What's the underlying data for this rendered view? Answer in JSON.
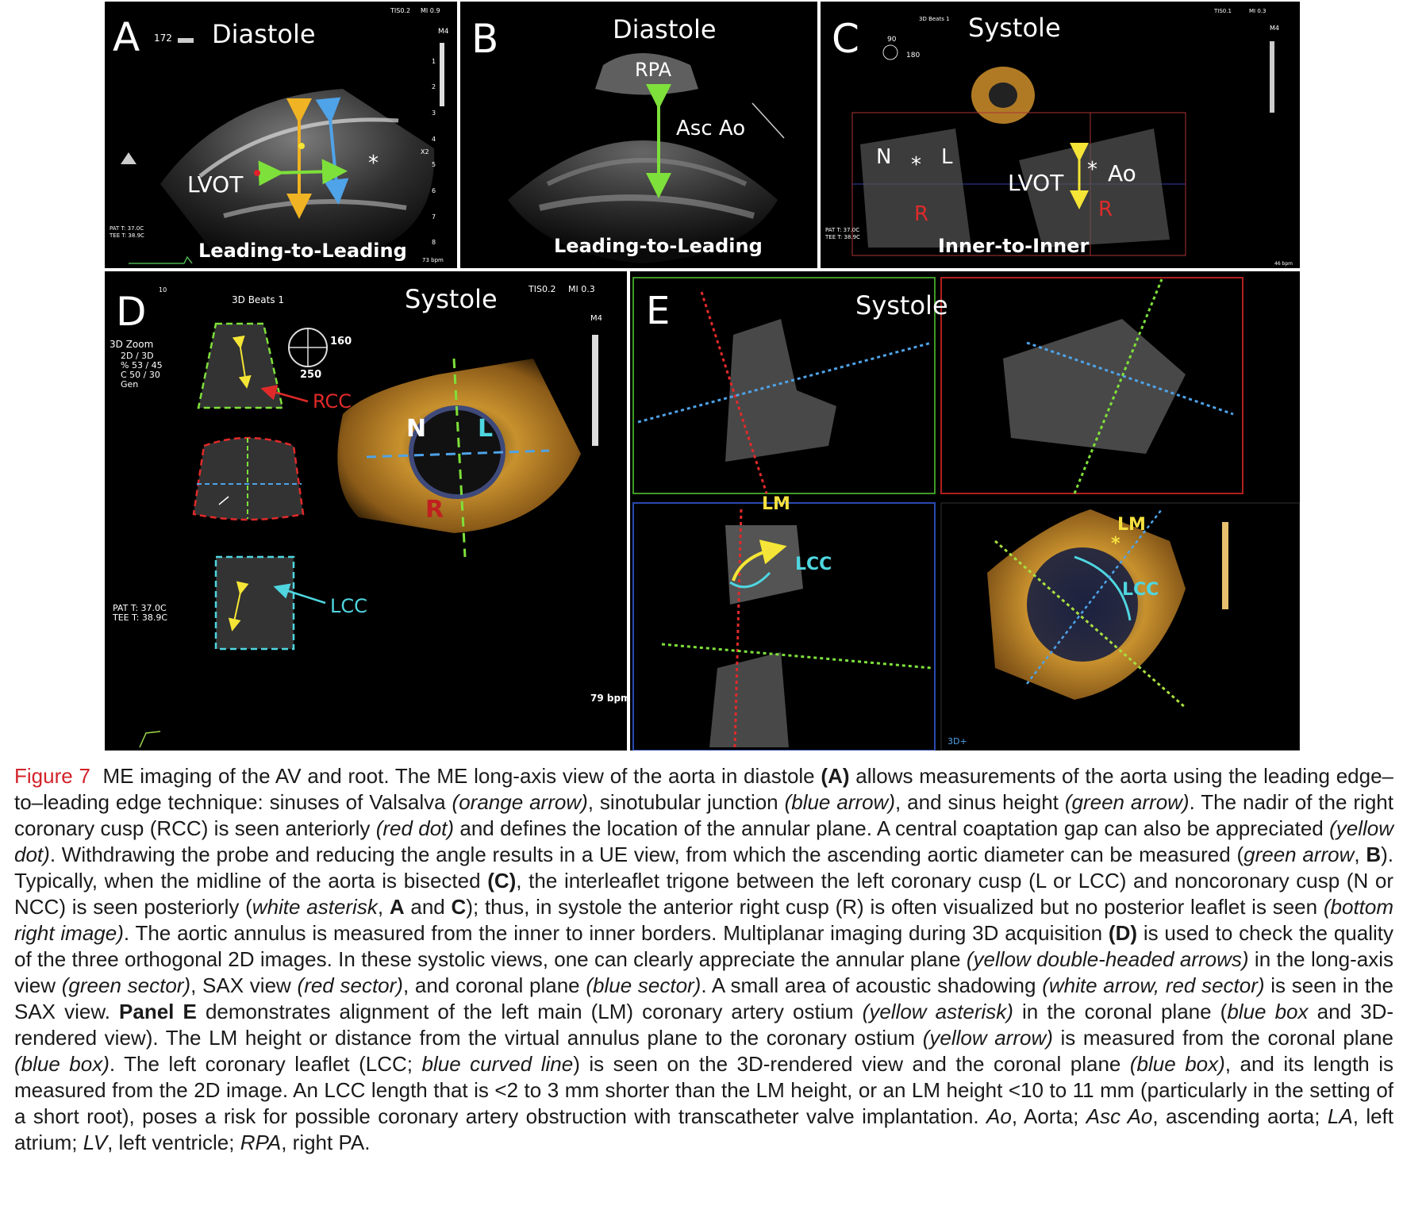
{
  "panels": {
    "A": {
      "letter": "A",
      "phase": "Diastole",
      "technique": "Leading-to-Leading",
      "tis": "TIS0.2",
      "mi": "MI 0.9",
      "m": "M4",
      "angle": "172",
      "lvot": "LVOT",
      "asterisk": "*",
      "bpm": "73 bpm",
      "x2": "X2",
      "pat": "PAT T: 37.0C",
      "tee": "TEE T: 38.9C",
      "scale_ticks": [
        "1",
        "2",
        "3",
        "4",
        "5",
        "6",
        "7",
        "8"
      ]
    },
    "B": {
      "letter": "B",
      "phase": "Diastole",
      "technique": "Leading-to-Leading",
      "rpa": "RPA",
      "asc_ao": "Asc Ao"
    },
    "C": {
      "letter": "C",
      "phase": "Systole",
      "technique": "Inner-to-Inner",
      "beats": "3D Beats 1",
      "tis": "TIS0.1",
      "mi": "MI 0.3",
      "m": "M4",
      "angle_top": "90",
      "angle_side": "180",
      "n": "N",
      "l": "L",
      "r": "R",
      "lvot": "LVOT",
      "ao": "Ao",
      "asterisk": "*",
      "bpm": "46 bpm",
      "pat": "PAT T: 37.0C",
      "tee": "TEE T: 38.9C"
    },
    "D": {
      "letter": "D",
      "phase": "Systole",
      "beats": "3D Beats 1",
      "tis": "TIS0.2",
      "mi": "MI 0.3",
      "m": "M4",
      "num10": "10",
      "angle1": "160",
      "angle2": "250",
      "zoom": "3D Zoom",
      "zoom_l1": "2D / 3D",
      "zoom_l2": "% 53 / 45",
      "zoom_l3": "C 50 / 30",
      "zoom_l4": "Gen",
      "rcc": "RCC",
      "lcc": "LCC",
      "n": "N",
      "l": "L",
      "r": "R",
      "pat": "PAT T: 37.0C",
      "tee": "TEE T: 38.9C",
      "bpm": "79 bpm"
    },
    "E": {
      "letter": "E",
      "phase": "Systole",
      "lm": "LM",
      "lcc": "LCC",
      "lm2": "LM",
      "lcc2": "LCC",
      "asterisk": "*",
      "tag": "3D+"
    }
  },
  "colors": {
    "orange_arrow": "#f0b323",
    "blue_arrow": "#4fa3e8",
    "green_arrow": "#7ee03a",
    "red_dot": "#e0202a",
    "yellow_dot": "#f5e536",
    "red_label": "#e02a2a",
    "cyan_label": "#4fd6e0",
    "yellow_label": "#f5e040",
    "caption_red": "#d2232a"
  },
  "caption": {
    "figure_label": "Figure 7",
    "t01": "ME imaging of the AV and root. The ME long-axis view of the aorta in diastole ",
    "b01": "(A)",
    "t02": " allows measurements of the aorta using the leading edge–to–leading edge technique: sinuses of Valsalva ",
    "i01": "(orange arrow)",
    "t03": ", sinotubular junction ",
    "i02": "(blue arrow)",
    "t04": ", and sinus height ",
    "i03": "(green arrow)",
    "t05": ". The nadir of the right coronary cusp (RCC) is seen anteriorly ",
    "i04": "(red dot)",
    "t06": " and defines the location of the annular plane. A central coaptation gap can also be appreciated ",
    "i05": "(yellow dot)",
    "t07": ". Withdrawing the probe and reducing the angle results in a UE view, from which the ascending aortic diameter can be measured (",
    "i06": "green arrow",
    "t08": ", ",
    "b02": "B",
    "t09": "). Typically, when the midline of the aorta is bisected ",
    "b03": "(C)",
    "t10": ", the interleaflet trigone between the left coronary cusp (L or LCC) and noncoronary cusp (N or NCC) is seen posteriorly (",
    "i07": "white asterisk",
    "t11": ", ",
    "b04": "A",
    "t12": " and ",
    "b05": "C",
    "t13": "); thus, in systole the anterior right cusp (R) is often visualized but no posterior leaflet is seen ",
    "i08": "(bottom right image)",
    "t14": ". The aortic annulus is measured from the inner to inner borders. Multiplanar imaging during 3D acquisition ",
    "b06": "(D)",
    "t15": " is used to check the quality of the three orthogonal 2D images. In these systolic views, one can clearly appreciate the annular plane ",
    "i09": "(yellow double-headed arrows)",
    "t16": " in the long-axis view ",
    "i10": "(green sector)",
    "t17": ", SAX view ",
    "i11": "(red sector)",
    "t18": ", and coronal plane ",
    "i12": "(blue sector)",
    "t19": ". A small area of acoustic shadowing ",
    "i13": "(white arrow, red sector)",
    "t20": " is seen in the SAX view. ",
    "b07": "Panel E",
    "t21": " demonstrates alignment of the left main (LM) coronary artery ostium ",
    "i14": "(yellow asterisk)",
    "t22": " in the coronal plane (",
    "i15": "blue box",
    "t23": " and 3D-rendered view). The LM height or distance from the virtual annulus plane to the coronary ostium ",
    "i16": "(yellow arrow)",
    "t24": " is measured from the coronal plane ",
    "i17": "(blue box)",
    "t25": ". The left coronary leaflet (LCC; ",
    "i18": "blue curved line",
    "t26": ") is seen on the 3D-rendered view and the coronal plane ",
    "i19": "(blue box)",
    "t27": ", and its length is measured from the 2D image. An LCC length that is <2 to 3 mm shorter than the LM height, or an LM height <10 to 11 mm (particularly in the setting of a short root), poses a risk for possible coronary artery obstruction with transcatheter valve implantation. ",
    "i20": "Ao",
    "t28": ", Aorta; ",
    "i21": "Asc Ao",
    "t29": ", ascending aorta; ",
    "i22": "LA",
    "t30": ", left atrium; ",
    "i23": "LV",
    "t31": ", left ventricle; ",
    "i24": "RPA",
    "t32": ", right PA."
  }
}
